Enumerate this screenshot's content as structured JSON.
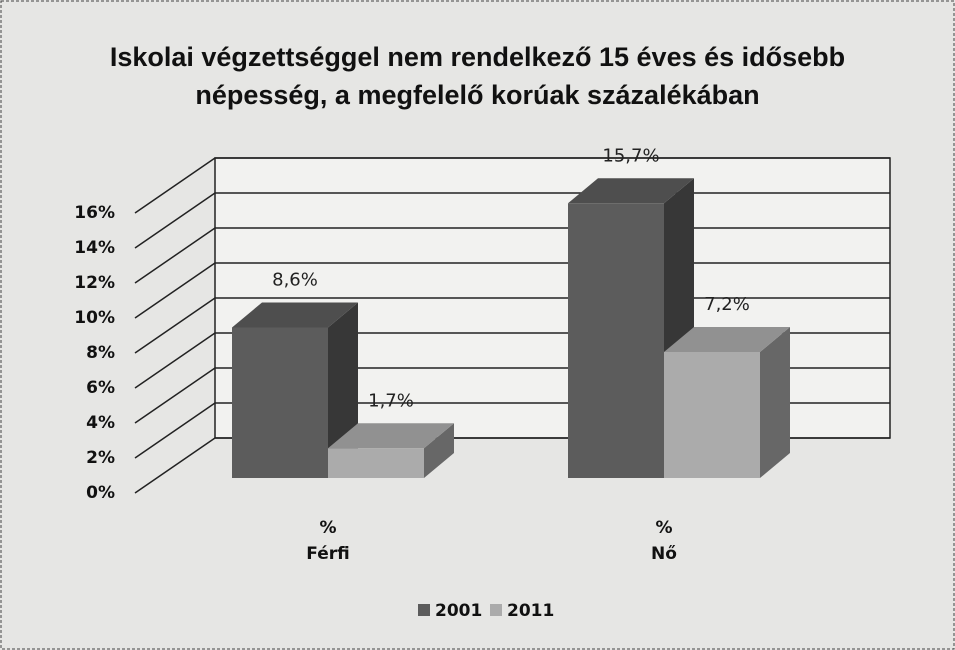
{
  "chart_data": {
    "type": "bar3d",
    "title": "Iskolai végzettséggel nem rendelkező 15 éves és idősebb népesség, a megfelelő korúak százalékában",
    "categories": [
      "%\nFérfi",
      "%\nNő"
    ],
    "series": [
      {
        "name": "2001",
        "color": "#5c5c5c",
        "values": [
          8.6,
          15.7
        ],
        "value_labels": [
          "8,6%",
          "15,7%"
        ]
      },
      {
        "name": "2011",
        "color": "#ababab",
        "values": [
          1.7,
          7.2
        ],
        "value_labels": [
          "1,7%",
          "7,2%"
        ]
      }
    ],
    "ylim": [
      0,
      16
    ],
    "yticks": [
      {
        "value": 0,
        "label": "0%"
      },
      {
        "value": 2,
        "label": "2%"
      },
      {
        "value": 4,
        "label": "4%"
      },
      {
        "value": 6,
        "label": "6%"
      },
      {
        "value": 8,
        "label": "8%"
      },
      {
        "value": 10,
        "label": "10%"
      },
      {
        "value": 12,
        "label": "12%"
      },
      {
        "value": 14,
        "label": "14%"
      },
      {
        "value": 16,
        "label": "16%"
      }
    ],
    "grid": true,
    "legend": "bottom"
  }
}
